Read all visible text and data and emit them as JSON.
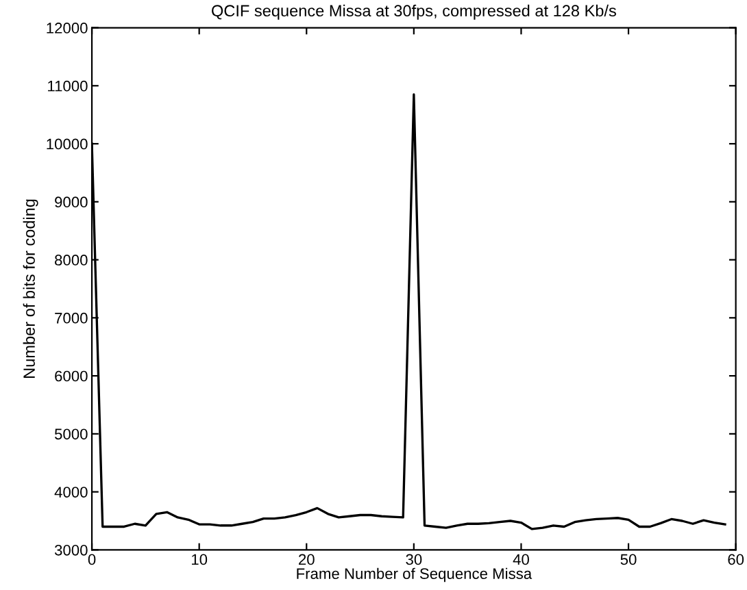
{
  "chart_data": {
    "type": "line",
    "title": "QCIF sequence Missa at 30fps, compressed at 128 Kb/s",
    "xlabel": "Frame Number of Sequence Missa",
    "ylabel": "Number of bits for coding",
    "x": [
      0,
      1,
      2,
      3,
      4,
      5,
      6,
      7,
      8,
      9,
      10,
      11,
      12,
      13,
      14,
      15,
      16,
      17,
      18,
      19,
      20,
      21,
      22,
      23,
      24,
      25,
      26,
      27,
      28,
      29,
      30,
      31,
      32,
      33,
      34,
      35,
      36,
      37,
      38,
      39,
      40,
      41,
      42,
      43,
      44,
      45,
      46,
      47,
      48,
      49,
      50,
      51,
      52,
      53,
      54,
      55,
      56,
      57,
      58,
      59
    ],
    "series": [
      {
        "color": "#000000",
        "values": [
          10000,
          3400,
          3400,
          3400,
          3450,
          3420,
          3620,
          3650,
          3560,
          3520,
          3440,
          3440,
          3420,
          3420,
          3450,
          3480,
          3540,
          3540,
          3560,
          3600,
          3650,
          3720,
          3620,
          3560,
          3580,
          3600,
          3600,
          3580,
          3570,
          3560,
          10850,
          3420,
          3400,
          3380,
          3420,
          3450,
          3450,
          3460,
          3480,
          3500,
          3470,
          3360,
          3380,
          3420,
          3400,
          3480,
          3510,
          3530,
          3540,
          3550,
          3520,
          3400,
          3400,
          3460,
          3530,
          3500,
          3450,
          3510,
          3470,
          3440
        ]
      }
    ],
    "xlim": [
      0,
      60
    ],
    "ylim": [
      3000,
      12000
    ],
    "xticks": [
      0,
      10,
      20,
      30,
      40,
      50,
      60
    ],
    "yticks": [
      3000,
      4000,
      5000,
      6000,
      7000,
      8000,
      9000,
      10000,
      11000,
      12000
    ],
    "grid": false,
    "legend": false,
    "marker": "none",
    "line_style": "solid"
  }
}
